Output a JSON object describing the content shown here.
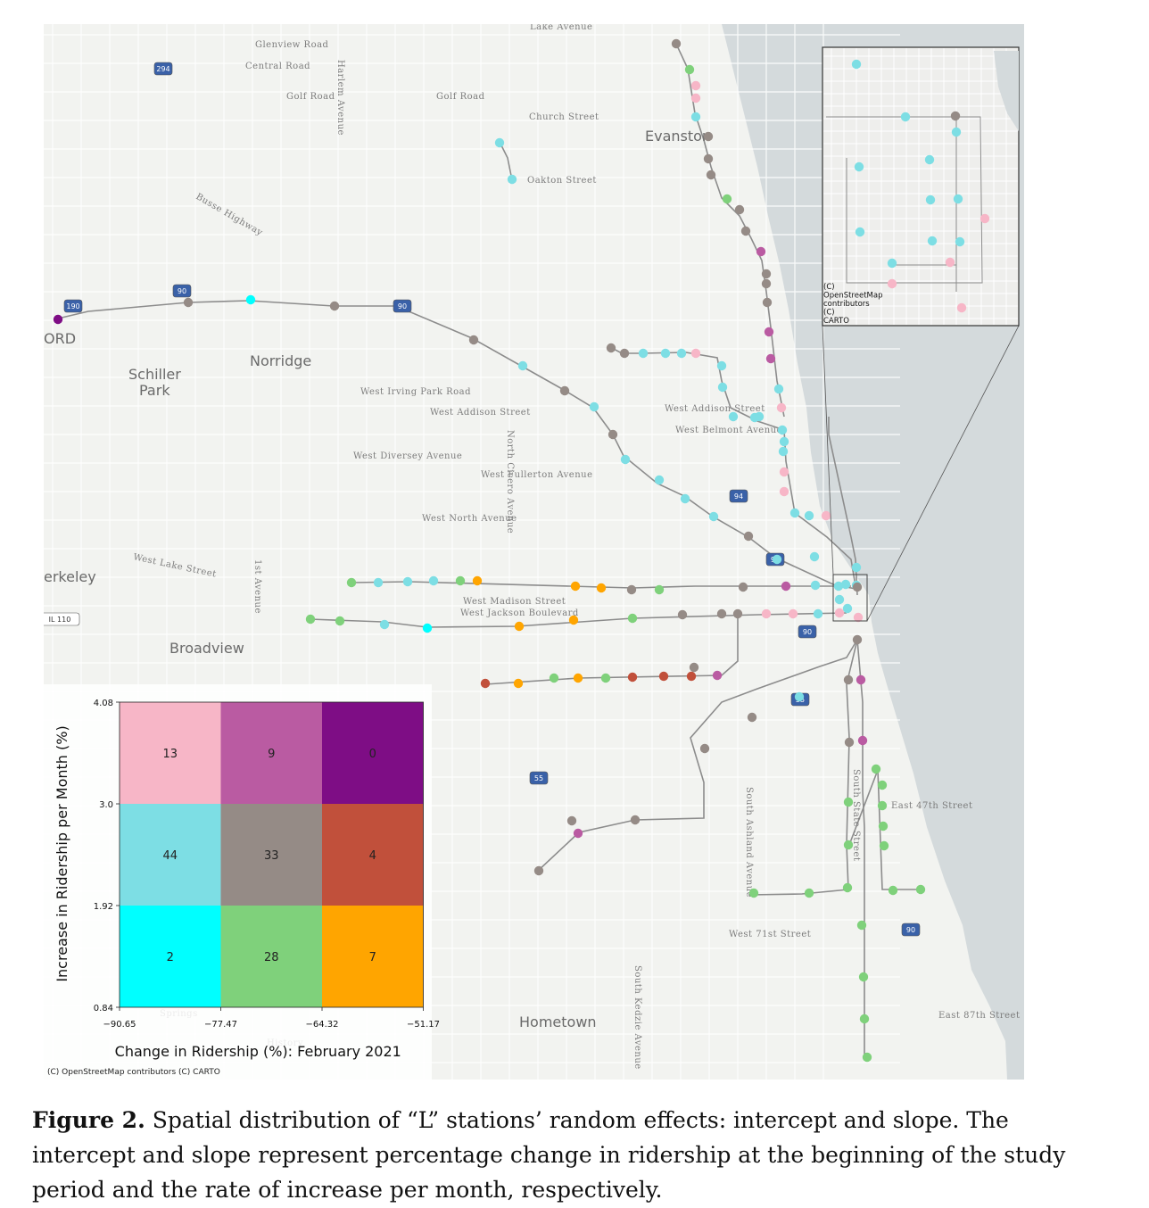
{
  "colors": {
    "water": "#d4dadc",
    "land": "#f2f3f0",
    "street": "#ffffff",
    "line": "#8c8c8c",
    "pink": "#f7b6c7",
    "magenta": "#ba5ba2",
    "purple": "#7e0d85",
    "lightblue": "#7ddee4",
    "gray": "#958b86",
    "red": "#c1503b",
    "cyan": "#00ffff",
    "green": "#7fd17b",
    "orange": "#ffa500"
  },
  "map": {
    "town_labels": [
      "Evanston",
      "Norridge",
      "Schiller Park",
      "erkeley",
      "Broadview",
      "Hometown",
      "ORD"
    ],
    "road_labels": [
      "Lake Avenue",
      "Glenview Road",
      "Central Road",
      "Golf Road",
      "Golf Road",
      "Church Street",
      "Oakton Street",
      "Busse Highway",
      "West Irving Park Road",
      "West Addison Street",
      "West Diversey Avenue",
      "West Fullerton Avenue",
      "West North Avenue",
      "West Lake Street",
      "West Madison Street",
      "West Jackson Boulevard",
      "West Addison Street",
      "West Belmont Avenue",
      "West 71st Street",
      "East 47th Street",
      "East 87th Street",
      "South State Street",
      "South Ashland Avenue",
      "South Kedzie Avenue",
      "North Cicero Avenue",
      "1st Avenue",
      "Harlem Avenue",
      "Springs",
      "History"
    ],
    "highway_shields": [
      "294",
      "190",
      "90",
      "90",
      "94",
      "90",
      "90",
      "55",
      "55",
      "90",
      "IL 110"
    ],
    "attribution_inset": "(C)\nOpenStreetMap\ncontributors\n(C)\nCARTO",
    "attribution_main": "(C) OpenStreetMap contributors (C) CARTO"
  },
  "legend": {
    "ylabel": "Increase in Ridership per Month (%)",
    "xlabel": "Change in Ridership (%): February 2021",
    "x_ticks": [
      "−90.65",
      "−77.47",
      "−64.32",
      "−51.17"
    ],
    "y_ticks": [
      "4.08",
      "3.0",
      "1.92",
      "0.84"
    ],
    "grid": [
      [
        {
          "count": "13",
          "color": "#f7b6c7"
        },
        {
          "count": "9",
          "color": "#ba5ba2"
        },
        {
          "count": "0",
          "color": "#7e0d85"
        }
      ],
      [
        {
          "count": "44",
          "color": "#7ddee4"
        },
        {
          "count": "33",
          "color": "#958b86"
        },
        {
          "count": "4",
          "color": "#c1503b"
        }
      ],
      [
        {
          "count": "2",
          "color": "#00ffff"
        },
        {
          "count": "28",
          "color": "#7fd17b"
        },
        {
          "count": "7",
          "color": "#ffa500"
        }
      ]
    ]
  },
  "caption": {
    "label": "Figure 2.",
    "text": " Spatial distribution of “L” stations’ random effects: intercept and slope. The intercept and slope represent percentage change in ridership at the beginning of the study period and the rate of increase per month, respectively."
  }
}
